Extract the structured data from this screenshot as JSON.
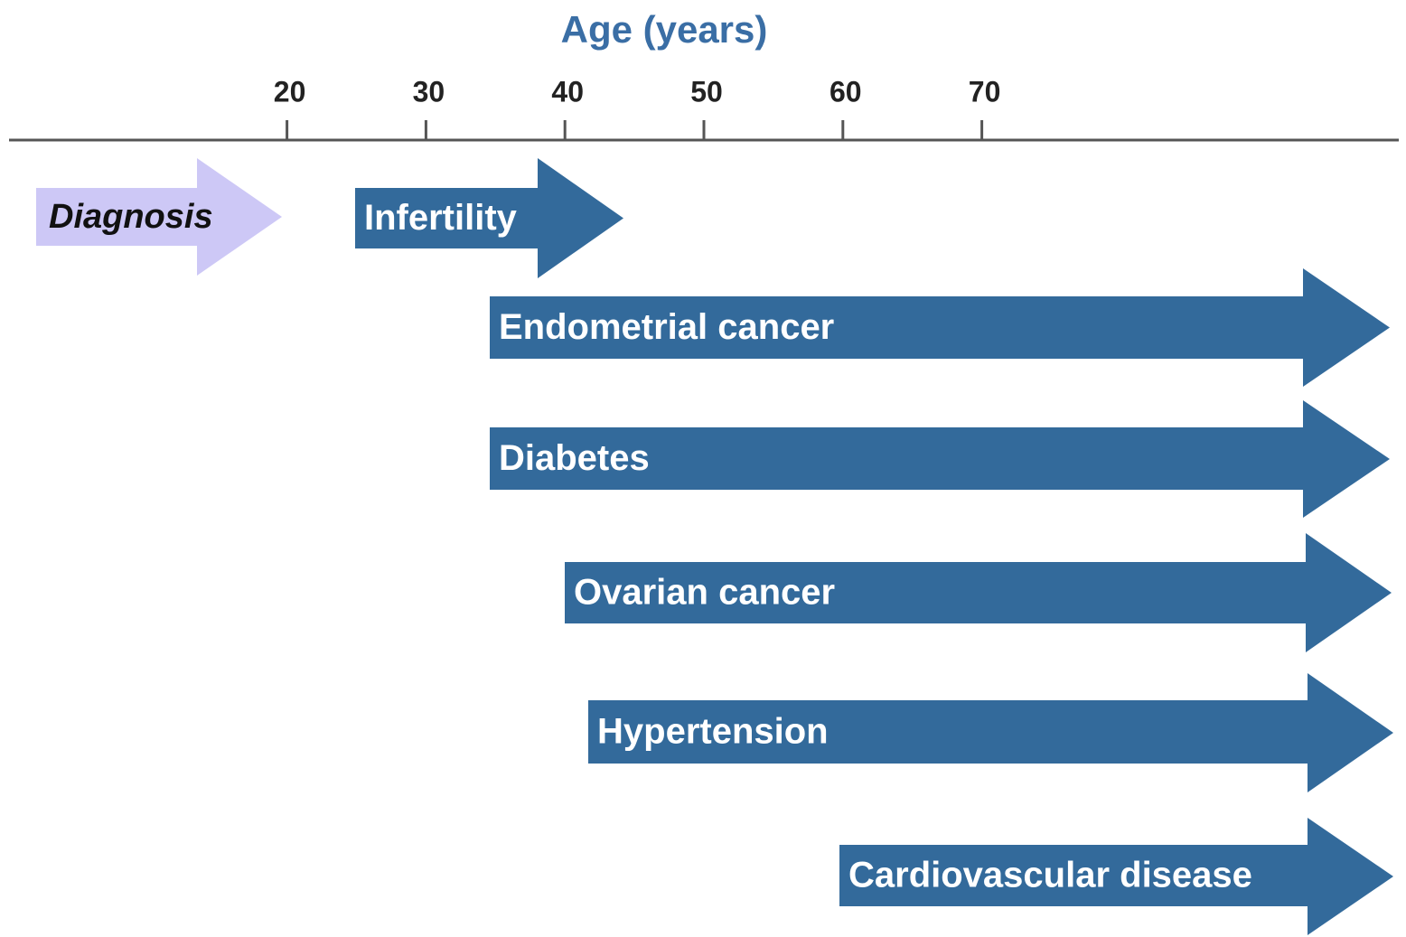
{
  "axis": {
    "title": "Age (years)",
    "range": [
      0,
      100
    ],
    "ticks": [
      20,
      30,
      40,
      50,
      60,
      70
    ]
  },
  "arrows": [
    {
      "label": "Diagnosis"
    },
    {
      "label": "Infertility"
    },
    {
      "label": "Endometrial cancer"
    },
    {
      "label": "Diabetes"
    },
    {
      "label": "Ovarian cancer"
    },
    {
      "label": "Hypertension"
    },
    {
      "label": "Cardiovascular disease"
    }
  ]
}
